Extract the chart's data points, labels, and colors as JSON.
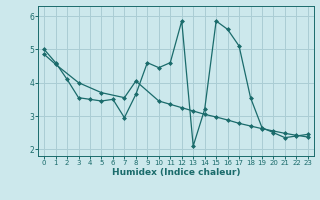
{
  "xlabel": "Humidex (Indice chaleur)",
  "bg_color": "#cce8ec",
  "grid_color": "#aacdd4",
  "line_color": "#1a6b6b",
  "xlim": [
    -0.5,
    23.5
  ],
  "ylim": [
    1.8,
    6.3
  ],
  "yticks": [
    2,
    3,
    4,
    5,
    6
  ],
  "xticks": [
    0,
    1,
    2,
    3,
    4,
    5,
    6,
    7,
    8,
    9,
    10,
    11,
    12,
    13,
    14,
    15,
    16,
    17,
    18,
    19,
    20,
    21,
    22,
    23
  ],
  "line1_x": [
    0,
    1,
    2,
    3,
    4,
    5,
    6,
    7,
    8,
    9,
    10,
    11,
    12,
    13,
    14,
    15,
    16,
    17,
    18,
    19,
    20,
    21,
    22,
    23
  ],
  "line1_y": [
    5.0,
    4.6,
    4.1,
    3.55,
    3.5,
    3.45,
    3.5,
    2.95,
    3.65,
    4.6,
    4.45,
    4.6,
    5.85,
    2.1,
    3.2,
    5.85,
    5.6,
    5.1,
    3.55,
    2.65,
    2.5,
    2.35,
    2.4,
    2.45
  ],
  "line2_x": [
    0,
    1,
    3,
    5,
    7,
    8,
    10,
    11,
    12,
    13,
    14,
    15,
    16,
    17,
    18,
    19,
    20,
    21,
    22,
    23
  ],
  "line2_y": [
    4.85,
    4.55,
    4.0,
    3.7,
    3.55,
    4.05,
    3.45,
    3.35,
    3.25,
    3.15,
    3.05,
    2.97,
    2.88,
    2.78,
    2.7,
    2.62,
    2.55,
    2.48,
    2.42,
    2.37
  ]
}
